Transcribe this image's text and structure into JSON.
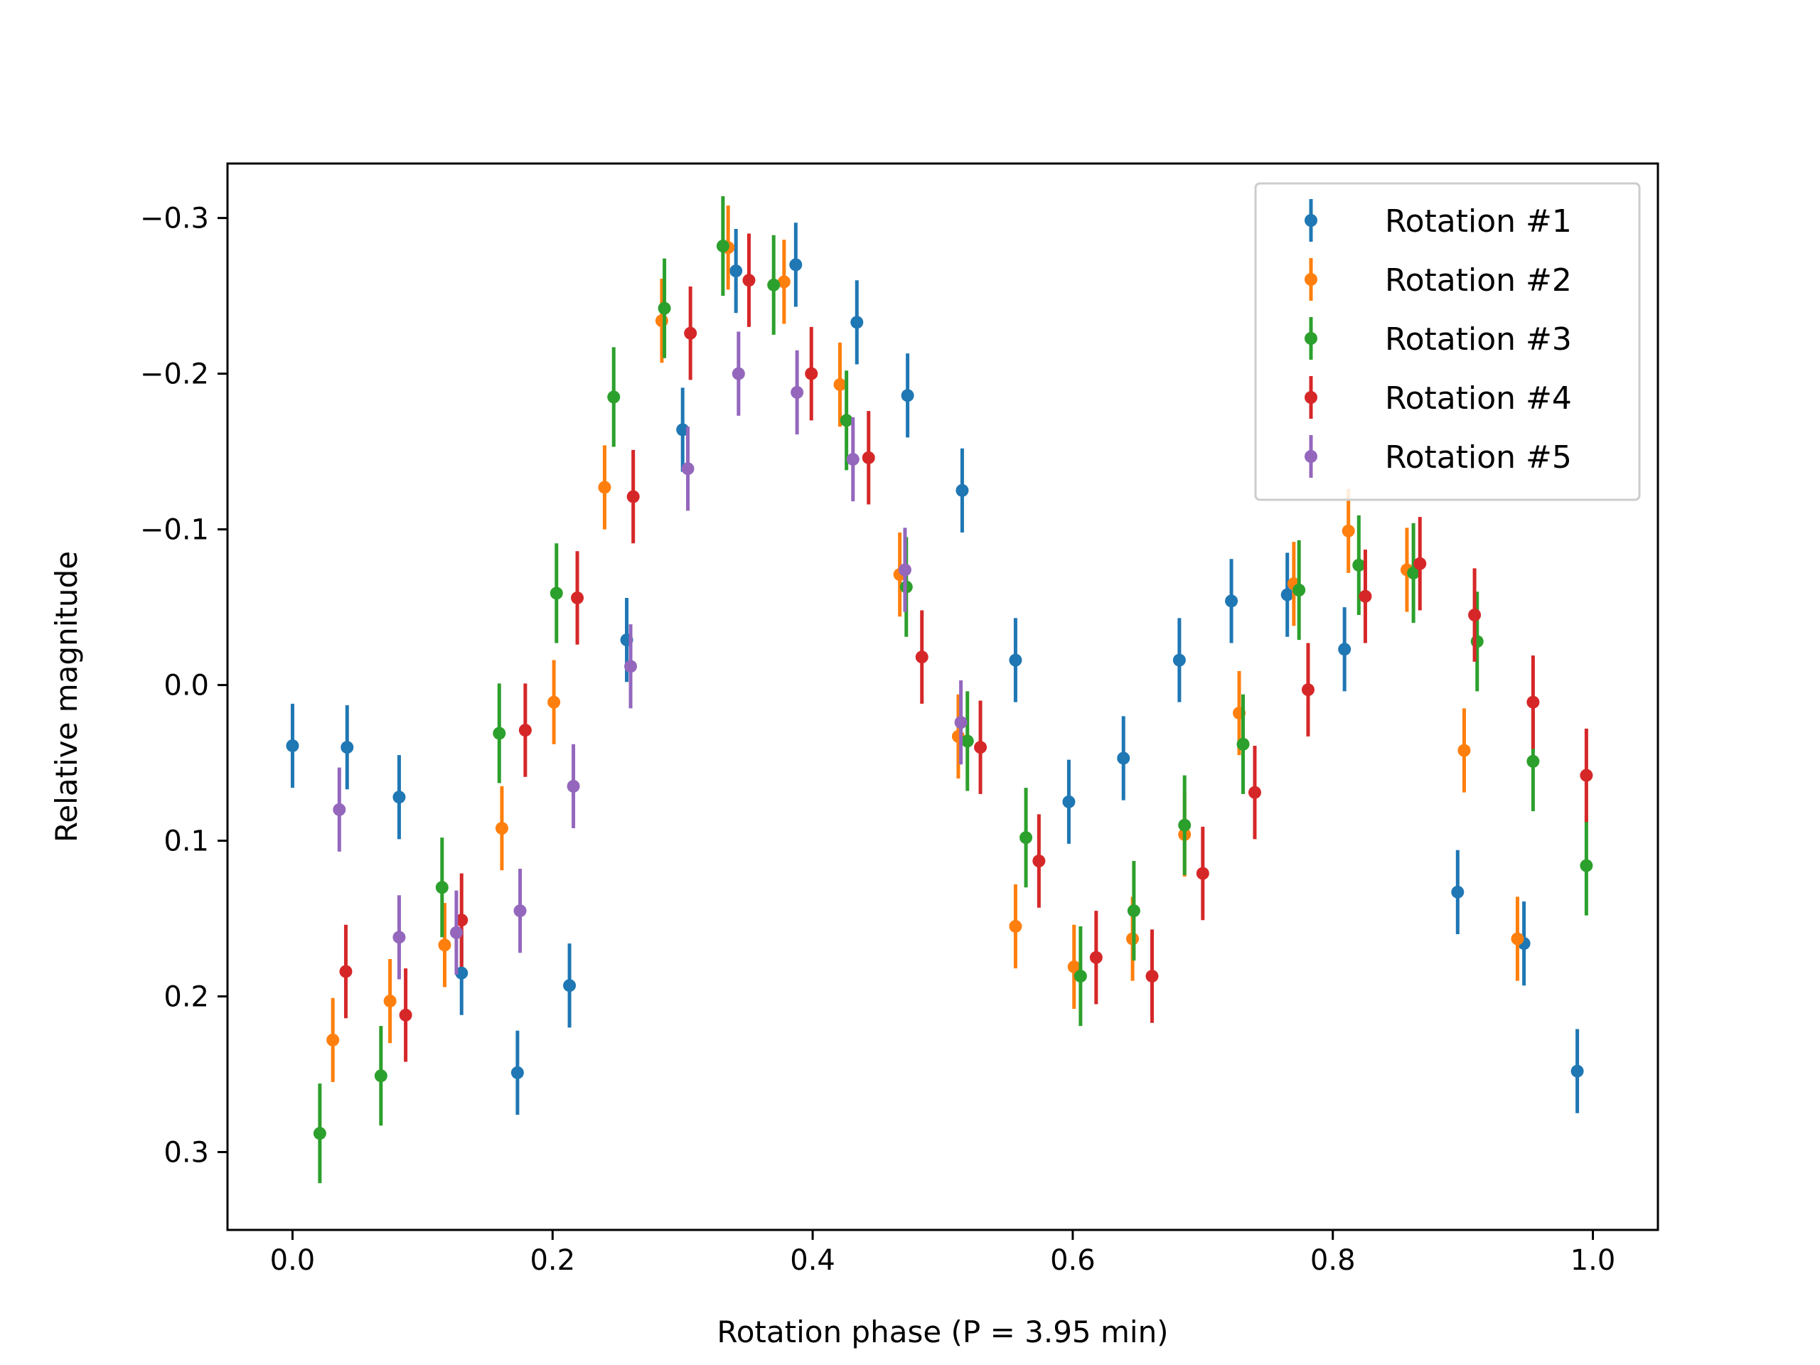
{
  "chart_data": {
    "type": "scatter",
    "subtype": "errorbar",
    "title": "",
    "xlabel": "Rotation phase (P = 3.95 min)",
    "ylabel": "Relative magnitude",
    "xlim": [
      -0.05,
      1.05
    ],
    "ylim": [
      0.35,
      -0.335
    ],
    "y_inverted": true,
    "grid": false,
    "legend_position": "top-right",
    "xticks": [
      0.0,
      0.2,
      0.4,
      0.6,
      0.8,
      1.0
    ],
    "xtick_labels": [
      "0.0",
      "0.2",
      "0.4",
      "0.6",
      "0.8",
      "1.0"
    ],
    "yticks": [
      -0.3,
      -0.2,
      -0.1,
      0.0,
      0.1,
      0.2,
      0.3
    ],
    "ytick_labels": [
      "−0.3",
      "−0.2",
      "−0.1",
      "0.0",
      "0.1",
      "0.2",
      "0.3"
    ],
    "series": [
      {
        "name": "Rotation #1",
        "color": "#1f77b4",
        "error": 0.027,
        "x": [
          0.0,
          0.042,
          0.082,
          0.13,
          0.173,
          0.213,
          0.257,
          0.3,
          0.341,
          0.387,
          0.434,
          0.473,
          0.515,
          0.556,
          0.597,
          0.639,
          0.682,
          0.722,
          0.765,
          0.809,
          0.896,
          0.947,
          0.988
        ],
        "y": [
          0.039,
          0.04,
          0.072,
          0.185,
          0.249,
          0.193,
          -0.029,
          -0.164,
          -0.266,
          -0.27,
          -0.233,
          -0.186,
          -0.125,
          -0.016,
          0.075,
          0.047,
          -0.016,
          -0.054,
          -0.058,
          -0.023,
          0.133,
          0.166,
          0.248
        ]
      },
      {
        "name": "Rotation #2",
        "color": "#ff7f0e",
        "error": 0.027,
        "x": [
          0.031,
          0.075,
          0.117,
          0.161,
          0.201,
          0.24,
          0.284,
          0.335,
          0.378,
          0.421,
          0.467,
          0.512,
          0.556,
          0.601,
          0.646,
          0.686,
          0.728,
          0.77,
          0.812,
          0.857,
          0.901,
          0.942
        ],
        "y": [
          0.228,
          0.203,
          0.167,
          0.092,
          0.011,
          -0.127,
          -0.234,
          -0.281,
          -0.259,
          -0.193,
          -0.071,
          0.033,
          0.155,
          0.181,
          0.163,
          0.096,
          0.018,
          -0.065,
          -0.099,
          -0.074,
          0.042,
          0.163
        ]
      },
      {
        "name": "Rotation #3",
        "color": "#2ca02c",
        "error": 0.032,
        "x": [
          0.021,
          0.068,
          0.115,
          0.159,
          0.203,
          0.247,
          0.286,
          0.331,
          0.37,
          0.426,
          0.472,
          0.519,
          0.564,
          0.606,
          0.647,
          0.686,
          0.731,
          0.774,
          0.82,
          0.862,
          0.911,
          0.954,
          0.995
        ],
        "y": [
          0.288,
          0.251,
          0.13,
          0.031,
          -0.059,
          -0.185,
          -0.242,
          -0.282,
          -0.257,
          -0.17,
          -0.063,
          0.036,
          0.098,
          0.187,
          0.145,
          0.09,
          0.038,
          -0.061,
          -0.077,
          -0.072,
          -0.028,
          0.049,
          0.116
        ]
      },
      {
        "name": "Rotation #4",
        "color": "#d62728",
        "error": 0.03,
        "x": [
          0.041,
          0.087,
          0.13,
          0.179,
          0.219,
          0.262,
          0.306,
          0.351,
          0.399,
          0.443,
          0.484,
          0.529,
          0.574,
          0.618,
          0.661,
          0.7,
          0.74,
          0.781,
          0.825,
          0.867,
          0.909,
          0.954,
          0.995
        ],
        "y": [
          0.184,
          0.212,
          0.151,
          0.029,
          -0.056,
          -0.121,
          -0.226,
          -0.26,
          -0.2,
          -0.146,
          -0.018,
          0.04,
          0.113,
          0.175,
          0.187,
          0.121,
          0.069,
          0.003,
          -0.057,
          -0.078,
          -0.045,
          0.011,
          0.058
        ]
      },
      {
        "name": "Rotation #5",
        "color": "#9467bd",
        "error": 0.027,
        "x": [
          0.036,
          0.082,
          0.126,
          0.175,
          0.216,
          0.26,
          0.304,
          0.343,
          0.388,
          0.431,
          0.471,
          0.514
        ],
        "y": [
          0.08,
          0.162,
          0.159,
          0.145,
          0.065,
          -0.012,
          -0.139,
          -0.2,
          -0.188,
          -0.145,
          -0.074,
          0.024
        ]
      }
    ]
  }
}
